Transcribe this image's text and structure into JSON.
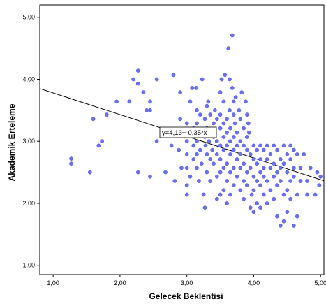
{
  "chart_data": {
    "type": "scatter",
    "title": "",
    "xlabel": "Gelecek Beklentisi",
    "ylabel": "Akademik Erteleme",
    "xlim": [
      0.8,
      5.05
    ],
    "ylim": [
      0.85,
      5.2
    ],
    "x_ticks": [
      "1,00",
      "2,00",
      "3,00",
      "4,00",
      "5,00"
    ],
    "y_ticks": [
      "1,00",
      "2,00",
      "3,00",
      "4,00",
      "5,00"
    ],
    "grid": false,
    "marker_color": "#6a6ff5",
    "marker_stroke": "#4a50d8",
    "line_color": "#000000",
    "regression": {
      "label": "y=4,13+-0,35*x",
      "intercept": 4.13,
      "slope": -0.35
    },
    "points": [
      [
        1.27,
        2.72
      ],
      [
        1.27,
        2.64
      ],
      [
        1.55,
        2.5
      ],
      [
        1.6,
        3.36
      ],
      [
        1.68,
        2.93
      ],
      [
        1.73,
        3.0
      ],
      [
        1.8,
        3.43
      ],
      [
        1.95,
        3.64
      ],
      [
        2.14,
        3.64
      ],
      [
        2.2,
        4.0
      ],
      [
        2.27,
        4.14
      ],
      [
        2.27,
        3.93
      ],
      [
        2.27,
        2.5
      ],
      [
        2.35,
        3.79
      ],
      [
        2.4,
        3.5
      ],
      [
        2.45,
        3.5
      ],
      [
        2.45,
        3.64
      ],
      [
        2.45,
        2.43
      ],
      [
        2.55,
        4.0
      ],
      [
        2.55,
        3.0
      ],
      [
        2.68,
        2.5
      ],
      [
        2.77,
        2.93
      ],
      [
        2.8,
        4.07
      ],
      [
        2.82,
        2.36
      ],
      [
        2.88,
        2.86
      ],
      [
        2.9,
        3.79
      ],
      [
        2.9,
        3.36
      ],
      [
        2.92,
        2.57
      ],
      [
        3.0,
        3.29
      ],
      [
        3.0,
        3.14
      ],
      [
        3.0,
        3.0
      ],
      [
        3.0,
        2.79
      ],
      [
        3.0,
        2.57
      ],
      [
        3.0,
        2.29
      ],
      [
        3.0,
        2.14
      ],
      [
        3.05,
        3.64
      ],
      [
        3.05,
        2.43
      ],
      [
        3.08,
        3.86
      ],
      [
        3.1,
        3.21
      ],
      [
        3.1,
        3.07
      ],
      [
        3.1,
        2.93
      ],
      [
        3.1,
        2.71
      ],
      [
        3.14,
        3.86
      ],
      [
        3.15,
        3.5
      ],
      [
        3.15,
        3.29
      ],
      [
        3.15,
        3.0
      ],
      [
        3.15,
        2.79
      ],
      [
        3.15,
        2.57
      ],
      [
        3.18,
        2.36
      ],
      [
        3.2,
        3.43
      ],
      [
        3.2,
        3.14
      ],
      [
        3.2,
        2.86
      ],
      [
        3.22,
        2.64
      ],
      [
        3.23,
        4.0
      ],
      [
        3.25,
        2.14
      ],
      [
        3.27,
        1.93
      ],
      [
        3.27,
        3.36
      ],
      [
        3.27,
        3.07
      ],
      [
        3.28,
        2.93
      ],
      [
        3.3,
        3.57
      ],
      [
        3.3,
        3.21
      ],
      [
        3.3,
        2.79
      ],
      [
        3.3,
        2.5
      ],
      [
        3.32,
        3.64
      ],
      [
        3.33,
        3.0
      ],
      [
        3.35,
        3.43
      ],
      [
        3.35,
        3.14
      ],
      [
        3.35,
        2.71
      ],
      [
        3.35,
        2.36
      ],
      [
        3.38,
        2.86
      ],
      [
        3.4,
        3.29
      ],
      [
        3.4,
        3.07
      ],
      [
        3.4,
        2.64
      ],
      [
        3.42,
        3.5
      ],
      [
        3.45,
        3.36
      ],
      [
        3.45,
        3.0
      ],
      [
        3.45,
        2.79
      ],
      [
        3.45,
        2.43
      ],
      [
        3.45,
        2.07
      ],
      [
        3.5,
        3.79
      ],
      [
        3.5,
        3.43
      ],
      [
        3.5,
        3.21
      ],
      [
        3.5,
        2.93
      ],
      [
        3.5,
        2.71
      ],
      [
        3.5,
        2.5
      ],
      [
        3.5,
        2.14
      ],
      [
        3.52,
        4.0
      ],
      [
        3.55,
        3.64
      ],
      [
        3.55,
        3.29
      ],
      [
        3.55,
        3.07
      ],
      [
        3.55,
        2.86
      ],
      [
        3.55,
        2.57
      ],
      [
        3.55,
        2.21
      ],
      [
        3.57,
        4.07
      ],
      [
        3.6,
        3.36
      ],
      [
        3.6,
        3.14
      ],
      [
        3.6,
        2.93
      ],
      [
        3.6,
        2.64
      ],
      [
        3.6,
        2.36
      ],
      [
        3.6,
        2.0
      ],
      [
        3.62,
        4.5
      ],
      [
        3.64,
        3.5
      ],
      [
        3.64,
        4.0
      ],
      [
        3.65,
        3.21
      ],
      [
        3.65,
        3.0
      ],
      [
        3.65,
        2.79
      ],
      [
        3.65,
        2.5
      ],
      [
        3.65,
        2.14
      ],
      [
        3.68,
        3.86
      ],
      [
        3.68,
        4.71
      ],
      [
        3.7,
        3.64
      ],
      [
        3.7,
        3.43
      ],
      [
        3.7,
        3.07
      ],
      [
        3.7,
        2.86
      ],
      [
        3.7,
        2.57
      ],
      [
        3.7,
        2.29
      ],
      [
        3.72,
        3.29
      ],
      [
        3.73,
        3.71
      ],
      [
        3.75,
        3.14
      ],
      [
        3.75,
        2.93
      ],
      [
        3.75,
        2.71
      ],
      [
        3.75,
        2.43
      ],
      [
        3.78,
        3.5
      ],
      [
        3.8,
        3.36
      ],
      [
        3.8,
        3.0
      ],
      [
        3.8,
        2.79
      ],
      [
        3.8,
        2.57
      ],
      [
        3.8,
        2.21
      ],
      [
        3.82,
        3.79
      ],
      [
        3.85,
        3.21
      ],
      [
        3.85,
        2.93
      ],
      [
        3.85,
        2.64
      ],
      [
        3.85,
        2.36
      ],
      [
        3.85,
        2.07
      ],
      [
        3.88,
        3.64
      ],
      [
        3.9,
        3.43
      ],
      [
        3.9,
        3.07
      ],
      [
        3.9,
        2.86
      ],
      [
        3.9,
        2.5
      ],
      [
        3.9,
        2.29
      ],
      [
        3.92,
        3.29
      ],
      [
        3.93,
        3.14
      ],
      [
        3.95,
        2.79
      ],
      [
        3.95,
        2.57
      ],
      [
        3.95,
        1.93
      ],
      [
        3.97,
        2.14
      ],
      [
        4.0,
        2.93
      ],
      [
        4.0,
        2.71
      ],
      [
        4.0,
        2.43
      ],
      [
        4.0,
        2.21
      ],
      [
        4.0,
        1.86
      ],
      [
        4.05,
        2.86
      ],
      [
        4.05,
        2.64
      ],
      [
        4.05,
        2.36
      ],
      [
        4.05,
        2.0
      ],
      [
        4.1,
        2.93
      ],
      [
        4.1,
        2.71
      ],
      [
        4.1,
        2.5
      ],
      [
        4.1,
        2.29
      ],
      [
        4.1,
        1.93
      ],
      [
        4.15,
        2.86
      ],
      [
        4.15,
        2.57
      ],
      [
        4.15,
        2.43
      ],
      [
        4.15,
        2.14
      ],
      [
        4.2,
        2.93
      ],
      [
        4.2,
        2.71
      ],
      [
        4.2,
        2.36
      ],
      [
        4.2,
        2.0
      ],
      [
        4.25,
        2.79
      ],
      [
        4.25,
        2.57
      ],
      [
        4.25,
        2.21
      ],
      [
        4.3,
        2.93
      ],
      [
        4.3,
        2.64
      ],
      [
        4.3,
        2.43
      ],
      [
        4.3,
        2.07
      ],
      [
        4.35,
        2.86
      ],
      [
        4.35,
        2.5
      ],
      [
        4.35,
        2.29
      ],
      [
        4.35,
        1.79
      ],
      [
        4.4,
        2.71
      ],
      [
        4.4,
        2.57
      ],
      [
        4.4,
        2.36
      ],
      [
        4.4,
        1.64
      ],
      [
        4.45,
        2.93
      ],
      [
        4.45,
        2.64
      ],
      [
        4.45,
        2.14
      ],
      [
        4.45,
        1.71
      ],
      [
        4.5,
        2.79
      ],
      [
        4.5,
        2.5
      ],
      [
        4.5,
        2.21
      ],
      [
        4.5,
        1.86
      ],
      [
        4.55,
        2.93
      ],
      [
        4.55,
        2.71
      ],
      [
        4.55,
        2.36
      ],
      [
        4.55,
        2.07
      ],
      [
        4.6,
        2.86
      ],
      [
        4.6,
        2.57
      ],
      [
        4.6,
        2.43
      ],
      [
        4.6,
        1.64
      ],
      [
        4.65,
        2.79
      ],
      [
        4.65,
        2.14
      ],
      [
        4.65,
        1.79
      ],
      [
        4.7,
        2.57
      ],
      [
        4.7,
        2.36
      ],
      [
        4.75,
        2.79
      ],
      [
        4.8,
        2.36
      ],
      [
        4.8,
        2.14
      ],
      [
        4.85,
        2.57
      ],
      [
        4.95,
        2.5
      ],
      [
        4.98,
        2.29
      ],
      [
        5.0,
        2.43
      ],
      [
        4.92,
        2.14
      ]
    ]
  }
}
